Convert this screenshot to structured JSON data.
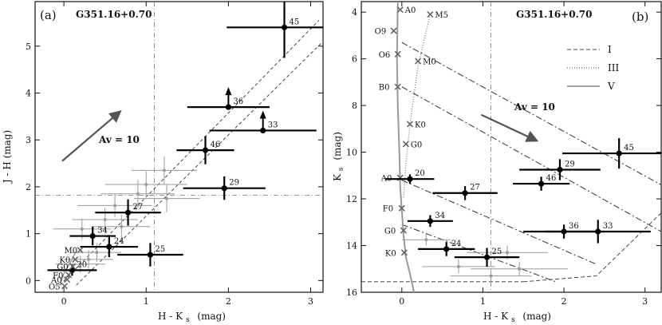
{
  "chart_data": [
    {
      "type": "scatter",
      "panel_label": "(a)",
      "title": "G351.16+0.70",
      "xlabel": "H - K",
      "xlabel_sub": "s",
      "xlabel_unit": "(mag)",
      "ylabel": "J - H (mag)",
      "xlim": [
        -0.35,
        3.15
      ],
      "ylim": [
        -0.25,
        5.95
      ],
      "xticks": [
        0,
        1,
        2,
        3
      ],
      "yticks": [
        0,
        1,
        2,
        3,
        4,
        5
      ],
      "ref_lines": {
        "vertical_x": 1.1,
        "horizontal_y": 1.82
      },
      "reddening_vector": {
        "label": "Av = 10",
        "from": [
          -0.02,
          2.55
        ],
        "to": [
          0.68,
          3.6
        ]
      },
      "reddening_band": [
        {
          "from": [
            -0.05,
            -0.1
          ],
          "to": [
            3.1,
            5.55
          ]
        },
        {
          "from": [
            0.15,
            -0.1
          ],
          "to": [
            3.15,
            5.1
          ]
        }
      ],
      "main_sequence": {
        "x": [
          -0.05,
          -0.03,
          0.0,
          0.05,
          0.1,
          0.14
        ],
        "y": [
          -0.1,
          0.0,
          0.15,
          0.3,
          0.45,
          0.6
        ]
      },
      "spectral_types": [
        {
          "label": "O5",
          "x": -0.05,
          "y": -0.12
        },
        {
          "label": "A0",
          "x": -0.02,
          "y": 0.02
        },
        {
          "label": "F0",
          "x": 0.0,
          "y": 0.12
        },
        {
          "label": "G0",
          "x": 0.05,
          "y": 0.3
        },
        {
          "label": "K0",
          "x": 0.08,
          "y": 0.45
        },
        {
          "label": "M0",
          "x": 0.14,
          "y": 0.65
        }
      ],
      "sources": [
        {
          "id": "45",
          "x": 2.68,
          "y": 5.4,
          "xerr": 0.7,
          "yerr": 0.65,
          "limit": false
        },
        {
          "id": "36",
          "x": 2.0,
          "y": 3.7,
          "xerr": 0.5,
          "yerr": 0,
          "limit": true
        },
        {
          "id": "33",
          "x": 2.42,
          "y": 3.2,
          "xerr": 0.65,
          "yerr": 0,
          "limit": true
        },
        {
          "id": "46",
          "x": 1.72,
          "y": 2.78,
          "xerr": 0.35,
          "yerr": 0.3,
          "limit": false
        },
        {
          "id": "29",
          "x": 1.95,
          "y": 1.97,
          "xerr": 0.5,
          "yerr": 0.25,
          "limit": false
        },
        {
          "id": "27",
          "x": 0.78,
          "y": 1.45,
          "xerr": 0.4,
          "yerr": 0.28,
          "limit": false
        },
        {
          "id": "34",
          "x": 0.35,
          "y": 0.95,
          "xerr": 0.28,
          "yerr": 0.2,
          "limit": false
        },
        {
          "id": "24",
          "x": 0.55,
          "y": 0.72,
          "xerr": 0.35,
          "yerr": 0.22,
          "limit": false
        },
        {
          "id": "25",
          "x": 1.05,
          "y": 0.55,
          "xerr": 0.4,
          "yerr": 0.25,
          "limit": false
        },
        {
          "id": "20",
          "x": 0.1,
          "y": 0.22,
          "xerr": 0.3,
          "yerr": 0.12,
          "limit": false
        }
      ],
      "faint_sources": [
        {
          "x": 1.22,
          "y": 2.35,
          "xerr": 0.4,
          "yerr": 0.3
        },
        {
          "x": 1.0,
          "y": 2.05,
          "xerr": 0.5,
          "yerr": 0.28
        },
        {
          "x": 0.9,
          "y": 1.85,
          "xerr": 0.45,
          "yerr": 0.3
        },
        {
          "x": 1.25,
          "y": 1.75,
          "xerr": 0.4,
          "yerr": 0.3
        },
        {
          "x": 0.62,
          "y": 1.6,
          "xerr": 0.45,
          "yerr": 0.25
        },
        {
          "x": 0.5,
          "y": 1.3,
          "xerr": 0.4,
          "yerr": 0.25
        },
        {
          "x": 0.7,
          "y": 1.15,
          "xerr": 0.35,
          "yerr": 0.25
        },
        {
          "x": 0.22,
          "y": 1.1,
          "xerr": 0.35,
          "yerr": 0.22
        },
        {
          "x": 0.4,
          "y": 0.6,
          "xerr": 0.3,
          "yerr": 0.2
        },
        {
          "x": 0.3,
          "y": 0.45,
          "xerr": 0.3,
          "yerr": 0.2
        },
        {
          "x": 0.2,
          "y": 0.35,
          "xerr": 0.3,
          "yerr": 0.18
        }
      ]
    },
    {
      "type": "scatter",
      "panel_label": "(b)",
      "title": "G351.16+0.70",
      "xlabel": "H - K",
      "xlabel_sub": "s",
      "xlabel_unit": "(mag)",
      "ylabel": "K",
      "ylabel_sub": "s",
      "ylabel_unit": "(mag)",
      "xlim": [
        -0.5,
        3.2
      ],
      "ylim": [
        16.0,
        3.55
      ],
      "xticks": [
        0,
        1,
        2,
        3
      ],
      "yticks": [
        4,
        6,
        8,
        10,
        12,
        14,
        16
      ],
      "ref_lines": {
        "vertical_x": 1.1,
        "horizontal_y": 15.55
      },
      "reddening_vector": {
        "label": "Av = 10",
        "from": [
          0.98,
          8.4
        ],
        "to": [
          1.66,
          9.5
        ]
      },
      "legend": {
        "position": "top-right",
        "items": [
          {
            "label": "I",
            "style": "dashed"
          },
          {
            "label": "III",
            "style": "dotted"
          },
          {
            "label": "V",
            "style": "solid"
          }
        ]
      },
      "isochrone_V": {
        "x": [
          -0.05,
          -0.06,
          -0.05,
          -0.03,
          -0.02,
          0.0,
          0.02,
          0.05,
          0.1,
          0.15
        ],
        "y": [
          3.6,
          6.0,
          8.0,
          10.0,
          11.5,
          12.5,
          13.5,
          14.5,
          15.2,
          16.0
        ]
      },
      "isochrone_III": {
        "x": [
          0.35,
          0.2,
          0.1,
          0.05,
          0.02
        ],
        "y": [
          4.1,
          6.3,
          8.8,
          10.5,
          12.0
        ]
      },
      "isochrone_I": {
        "x": [
          1.5,
          2.4,
          3.2
        ],
        "y": [
          15.55,
          15.3,
          12.6
        ]
      },
      "reddening_tracks": [
        {
          "from": [
            0.0,
            5.3
          ],
          "to": [
            3.2,
            11.4
          ]
        },
        {
          "from": [
            0.0,
            7.2
          ],
          "to": [
            3.2,
            13.4
          ]
        },
        {
          "from": [
            0.0,
            11.2
          ],
          "to": [
            2.4,
            14.8
          ]
        },
        {
          "from": [
            0.0,
            13.1
          ],
          "to": [
            1.9,
            15.55
          ]
        }
      ],
      "spectral_types_V": [
        {
          "label": "O9",
          "x": -0.1,
          "y": 4.8
        },
        {
          "label": "O6",
          "x": -0.05,
          "y": 5.8
        },
        {
          "label": "B0",
          "x": -0.05,
          "y": 7.2
        },
        {
          "label": "A0",
          "x": -0.02,
          "y": 11.1
        },
        {
          "label": "F0",
          "x": 0.0,
          "y": 12.4
        },
        {
          "label": "G0",
          "x": 0.02,
          "y": 13.35
        },
        {
          "label": "K0",
          "x": 0.03,
          "y": 14.3
        }
      ],
      "spectral_types_III": [
        {
          "label": "A0",
          "x": -0.02,
          "y": 3.9
        },
        {
          "label": "M5",
          "x": 0.35,
          "y": 4.1
        },
        {
          "label": "M0",
          "x": 0.2,
          "y": 6.1
        },
        {
          "label": "K0",
          "x": 0.1,
          "y": 8.8
        },
        {
          "label": "G0",
          "x": 0.05,
          "y": 9.65
        }
      ],
      "sources": [
        {
          "id": "45",
          "x": 2.68,
          "y": 10.05,
          "xerr": 0.7,
          "yerr": 0.65
        },
        {
          "id": "29",
          "x": 1.95,
          "y": 10.75,
          "xerr": 0.5,
          "yerr": 0.45
        },
        {
          "id": "46",
          "x": 1.72,
          "y": 11.35,
          "xerr": 0.35,
          "yerr": 0.3
        },
        {
          "id": "20",
          "x": 0.1,
          "y": 11.15,
          "xerr": 0.3,
          "yerr": 0.2
        },
        {
          "id": "27",
          "x": 0.78,
          "y": 11.75,
          "xerr": 0.4,
          "yerr": 0.3
        },
        {
          "id": "34",
          "x": 0.35,
          "y": 12.95,
          "xerr": 0.28,
          "yerr": 0.25
        },
        {
          "id": "36",
          "x": 2.0,
          "y": 13.4,
          "xerr": 0.5,
          "yerr": 0.3
        },
        {
          "id": "33",
          "x": 2.42,
          "y": 13.4,
          "xerr": 0.65,
          "yerr": 0.5
        },
        {
          "id": "24",
          "x": 0.55,
          "y": 14.15,
          "xerr": 0.35,
          "yerr": 0.3
        },
        {
          "id": "25",
          "x": 1.05,
          "y": 14.5,
          "xerr": 0.4,
          "yerr": 0.4
        }
      ],
      "faint_sources": [
        {
          "x": 1.3,
          "y": 14.3,
          "xerr": 0.5,
          "yerr": 0.3
        },
        {
          "x": 1.45,
          "y": 15.0,
          "xerr": 0.6,
          "yerr": 0.3
        },
        {
          "x": 0.7,
          "y": 14.9,
          "xerr": 0.45,
          "yerr": 0.3
        },
        {
          "x": 0.3,
          "y": 13.75,
          "xerr": 0.3,
          "yerr": 0.25
        },
        {
          "x": 1.1,
          "y": 15.3,
          "xerr": 0.5,
          "yerr": 0.3
        }
      ]
    }
  ]
}
